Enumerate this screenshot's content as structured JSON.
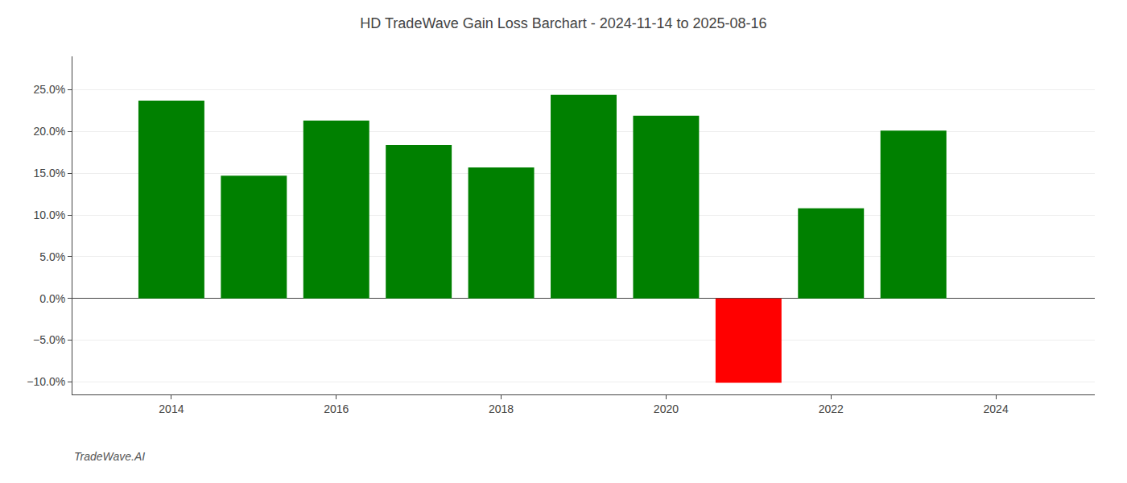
{
  "chart_data": {
    "type": "bar",
    "title": "HD TradeWave Gain Loss Barchart - 2024-11-14 to 2025-08-16",
    "annotations": [
      "TradeWave.AI"
    ],
    "x": [
      2014,
      2015,
      2016,
      2017,
      2018,
      2019,
      2020,
      2021,
      2022,
      2023
    ],
    "values": [
      0.237,
      0.147,
      0.213,
      0.184,
      0.157,
      0.244,
      0.219,
      -0.101,
      0.108,
      0.201
    ],
    "colors": [
      "#008000",
      "#008000",
      "#008000",
      "#008000",
      "#008000",
      "#008000",
      "#008000",
      "#ff0000",
      "#008000",
      "#008000"
    ],
    "xlim": [
      2012.8,
      2025.2
    ],
    "xticks": [
      2014,
      2016,
      2018,
      2020,
      2022,
      2024
    ],
    "ylim": [
      -0.115,
      0.29
    ],
    "yticks": [
      {
        "value": -0.1,
        "label": "−10.0%"
      },
      {
        "value": -0.05,
        "label": "−5.0%"
      },
      {
        "value": 0.0,
        "label": "0.0%"
      },
      {
        "value": 0.05,
        "label": "5.0%"
      },
      {
        "value": 0.1,
        "label": "10.0%"
      },
      {
        "value": 0.15,
        "label": "15.0%"
      },
      {
        "value": 0.2,
        "label": "20.0%"
      },
      {
        "value": 0.25,
        "label": "25.0%"
      }
    ],
    "grid": true
  }
}
